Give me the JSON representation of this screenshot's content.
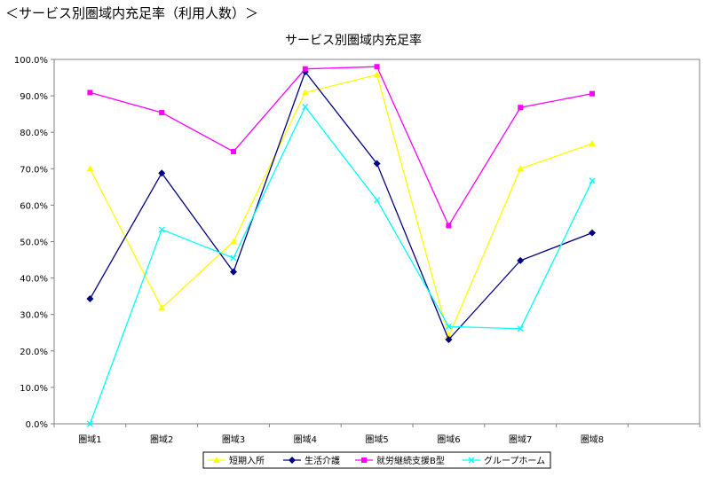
{
  "page": {
    "heading": "＜サービス別圏域内充足率（利用人数）＞"
  },
  "chart_data": {
    "type": "line",
    "title": "サービス別圏域内充足率",
    "xlabel": "",
    "ylabel": "",
    "categories": [
      "圏域1",
      "圏域2",
      "圏域3",
      "圏域4",
      "圏域5",
      "圏域6",
      "圏域7",
      "圏域8"
    ],
    "ylim": [
      0,
      100
    ],
    "yticks": [
      "0.0%",
      "10.0%",
      "20.0%",
      "30.0%",
      "40.0%",
      "50.0%",
      "60.0%",
      "70.0%",
      "80.0%",
      "90.0%",
      "100.0%"
    ],
    "grid": false,
    "legend_position": "bottom",
    "series": [
      {
        "name": "短期入所",
        "color": "#ffff00",
        "marker": "triangle",
        "values": [
          70.0,
          31.8,
          50.0,
          90.9,
          95.8,
          24.0,
          70.0,
          76.9
        ]
      },
      {
        "name": "生活介護",
        "color": "#000080",
        "marker": "diamond",
        "values": [
          34.3,
          68.8,
          41.7,
          96.6,
          71.4,
          23.1,
          44.8,
          52.4
        ]
      },
      {
        "name": "就労継続支援B型",
        "color": "#ff00ff",
        "marker": "square",
        "values": [
          90.9,
          85.4,
          74.7,
          97.4,
          98.0,
          54.4,
          86.8,
          90.6
        ]
      },
      {
        "name": "グループホーム",
        "color": "#00ffff",
        "marker": "x",
        "values": [
          0.0,
          53.3,
          45.5,
          87.0,
          61.4,
          26.7,
          26.1,
          66.7
        ]
      }
    ]
  }
}
